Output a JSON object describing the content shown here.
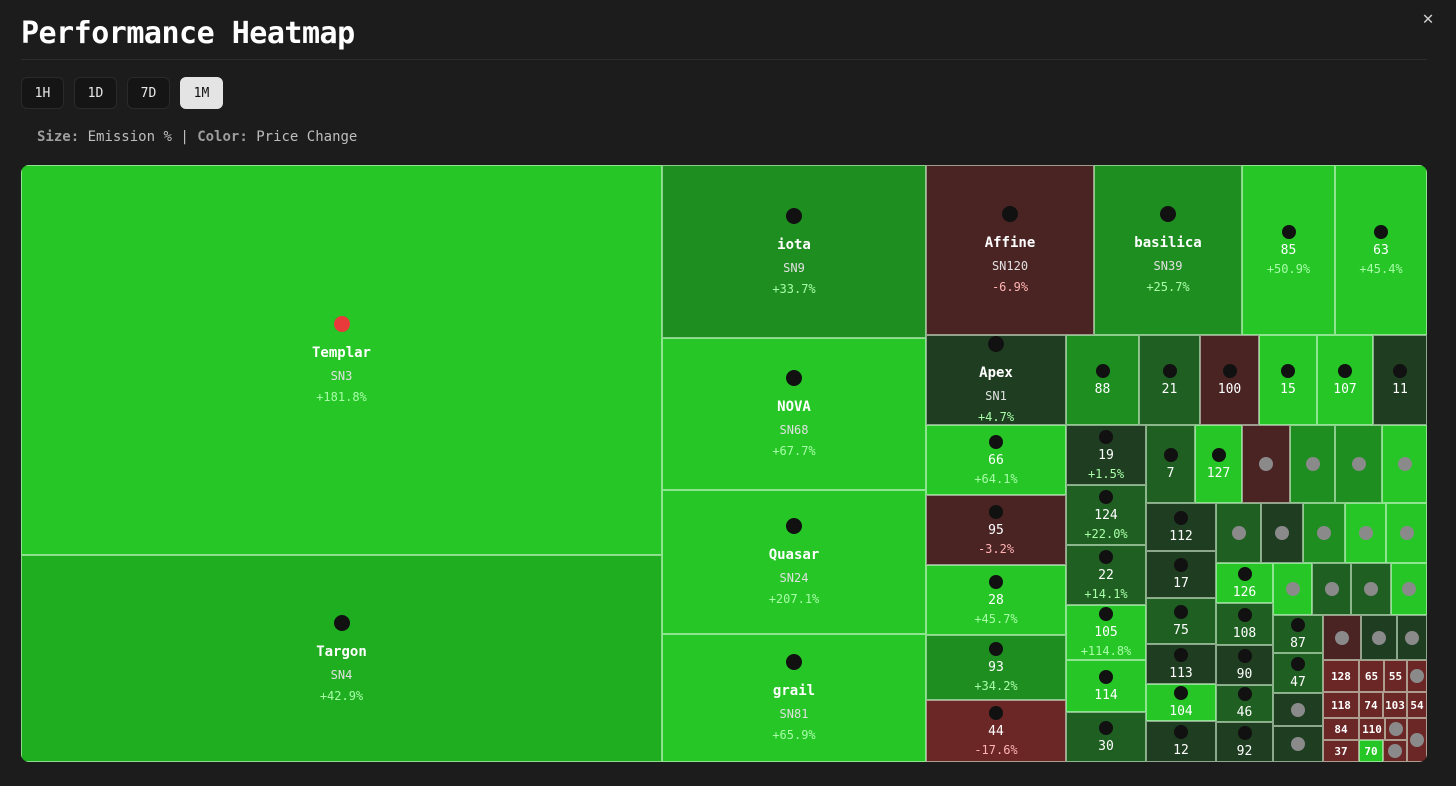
{
  "title": "Performance Heatmap",
  "close_icon": "close-icon",
  "tabs": [
    {
      "label": "1H",
      "active": false
    },
    {
      "label": "1D",
      "active": false
    },
    {
      "label": "7D",
      "active": false
    },
    {
      "label": "1M",
      "active": true
    }
  ],
  "legend": {
    "size_key": "Size:",
    "size_val": "Emission %",
    "sep": "|",
    "color_key": "Color:",
    "color_val": "Price Change"
  },
  "colors": {
    "bright_green": "#25c626",
    "mid_green": "#1fae20",
    "dark_green": "#1f8e21",
    "deep_green": "#1f5f22",
    "darkest_green": "#1f3d21",
    "dark_red": "#4a2323",
    "red": "#6b2626",
    "pos_text": "#a8ffa8",
    "neg_text": "#ffb3b3"
  },
  "subnets": [
    {
      "name": "Templar",
      "netuid": "SN3",
      "change": "+181.8%",
      "icon": "templar-icon"
    },
    {
      "name": "Targon",
      "netuid": "SN4",
      "change": "+42.9%",
      "icon": "targon-icon"
    },
    {
      "name": "iota",
      "netuid": "SN9",
      "change": "+33.7%",
      "icon": "iota-icon"
    },
    {
      "name": "NOVA",
      "netuid": "SN68",
      "change": "+67.7%",
      "icon": "nova-icon"
    },
    {
      "name": "Quasar",
      "netuid": "SN24",
      "change": "+207.1%",
      "icon": "quasar-icon"
    },
    {
      "name": "grail",
      "netuid": "SN81",
      "change": "+65.9%",
      "icon": "grail-icon"
    },
    {
      "name": "Affine",
      "netuid": "SN120",
      "change": "-6.9%",
      "icon": "affine-icon"
    },
    {
      "name": "basilica",
      "netuid": "SN39",
      "change": "+25.7%",
      "icon": "basilica-icon"
    },
    {
      "name": "Apex",
      "netuid": "SN1",
      "change": "+4.7%",
      "icon": "apex-icon"
    },
    {
      "label": "85",
      "change": "+50.9%"
    },
    {
      "label": "63",
      "change": "+45.4%"
    },
    {
      "label": "66",
      "change": "+64.1%"
    },
    {
      "label": "95",
      "change": "-3.2%"
    },
    {
      "label": "28",
      "change": "+45.7%"
    },
    {
      "label": "93",
      "change": "+34.2%"
    },
    {
      "label": "44",
      "change": "-17.6%"
    },
    {
      "label": "19",
      "change": "+1.5%"
    },
    {
      "label": "124",
      "change": "+22.0%"
    },
    {
      "label": "22",
      "change": "+14.1%"
    },
    {
      "label": "105",
      "change": "+114.8%"
    },
    {
      "label": "88"
    },
    {
      "label": "21"
    },
    {
      "label": "100"
    },
    {
      "label": "15"
    },
    {
      "label": "107"
    },
    {
      "label": "11"
    },
    {
      "label": "7"
    },
    {
      "label": "127"
    },
    {
      "label": "114"
    },
    {
      "label": "30"
    },
    {
      "label": "112"
    },
    {
      "label": "17"
    },
    {
      "label": "75"
    },
    {
      "label": "113"
    },
    {
      "label": "104"
    },
    {
      "label": "12"
    },
    {
      "label": "126"
    },
    {
      "label": "108"
    },
    {
      "label": "90"
    },
    {
      "label": "46"
    },
    {
      "label": "92"
    },
    {
      "label": "87"
    },
    {
      "label": "47"
    },
    {
      "label": "128"
    },
    {
      "label": "65"
    },
    {
      "label": "55"
    },
    {
      "label": "118"
    },
    {
      "label": "74"
    },
    {
      "label": "103"
    },
    {
      "label": "54"
    },
    {
      "label": "84"
    },
    {
      "label": "110"
    },
    {
      "label": "37"
    },
    {
      "label": "70"
    }
  ]
}
